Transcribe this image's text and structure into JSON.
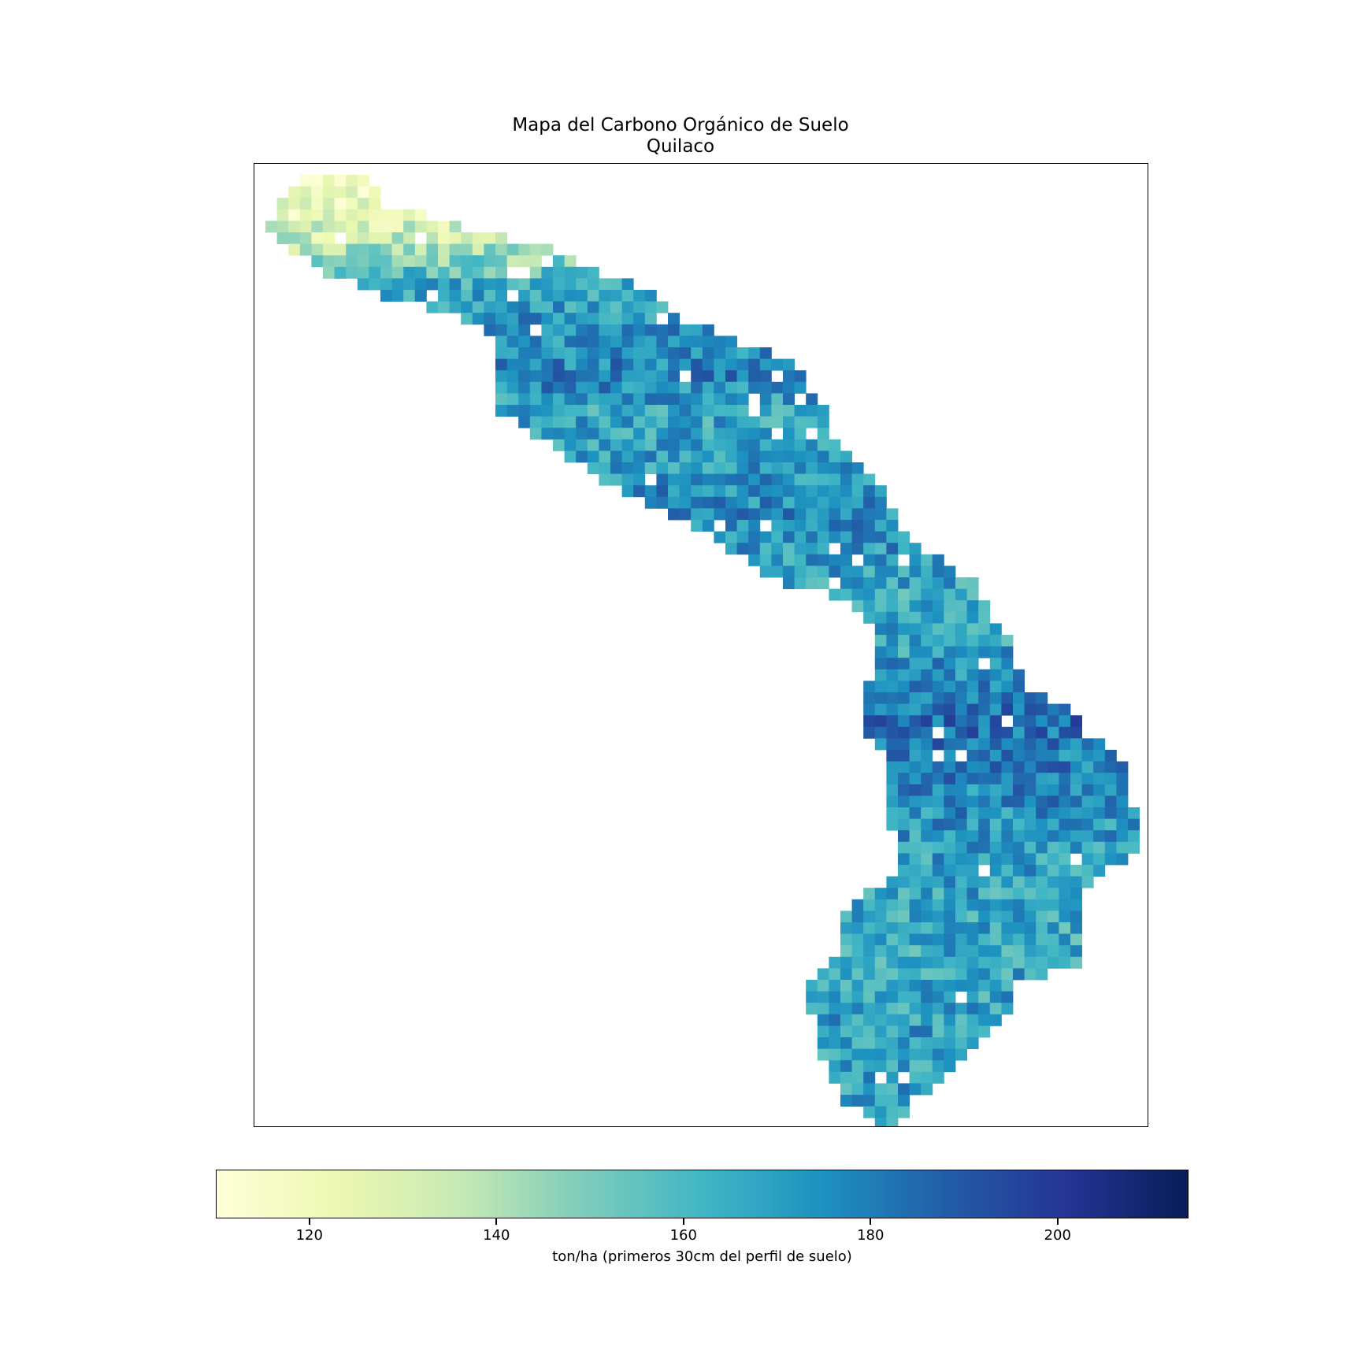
{
  "chart_data": {
    "type": "heatmap",
    "title": "Mapa del Carbono Orgánico de Suelo",
    "subtitle": "Quilaco",
    "colorbar": {
      "label": "ton/ha (primeros 30cm del perfil de suelo)",
      "range": [
        110,
        214
      ],
      "ticks": [
        120,
        140,
        160,
        180,
        200
      ],
      "colormap": [
        "#ffffd9",
        "#edf8b1",
        "#c7e9b4",
        "#7fcdbb",
        "#41b6c4",
        "#1d91c0",
        "#225ea8",
        "#253494",
        "#081d58"
      ]
    },
    "grid": {
      "rows": 83,
      "cols": 77,
      "value_range": [
        112,
        212
      ],
      "region_profile": [
        [
          0,
          3,
          8
        ],
        [
          2,
          1,
          9
        ],
        [
          4,
          0,
          16
        ],
        [
          6,
          2,
          24
        ],
        [
          8,
          5,
          28
        ],
        [
          10,
          10,
          33
        ],
        [
          12,
          17,
          35
        ],
        [
          14,
          20,
          40
        ],
        [
          16,
          20,
          45
        ],
        [
          18,
          20,
          46
        ],
        [
          20,
          20,
          48
        ],
        [
          22,
          23,
          48
        ],
        [
          24,
          26,
          50
        ],
        [
          26,
          29,
          52
        ],
        [
          28,
          33,
          53
        ],
        [
          30,
          37,
          54
        ],
        [
          32,
          40,
          56
        ],
        [
          34,
          43,
          59
        ],
        [
          35,
          45,
          61
        ],
        [
          36,
          49,
          61
        ],
        [
          38,
          52,
          62
        ],
        [
          40,
          53,
          64
        ],
        [
          42,
          53,
          64
        ],
        [
          44,
          52,
          65
        ],
        [
          46,
          52,
          69
        ],
        [
          48,
          52,
          70
        ],
        [
          50,
          54,
          73
        ],
        [
          52,
          54,
          74
        ],
        [
          54,
          54,
          74
        ],
        [
          56,
          54,
          75
        ],
        [
          58,
          55,
          75
        ],
        [
          60,
          55,
          72
        ],
        [
          62,
          52,
          70
        ],
        [
          64,
          50,
          70
        ],
        [
          66,
          50,
          70
        ],
        [
          68,
          49,
          70
        ],
        [
          70,
          47,
          64
        ],
        [
          72,
          47,
          64
        ],
        [
          74,
          48,
          62
        ],
        [
          76,
          48,
          60
        ],
        [
          78,
          49,
          58
        ],
        [
          80,
          50,
          55
        ],
        [
          82,
          53,
          54
        ]
      ],
      "value_trend": [
        [
          0,
          118
        ],
        [
          3,
          124
        ],
        [
          6,
          140
        ],
        [
          9,
          165
        ],
        [
          12,
          172
        ],
        [
          15,
          176
        ],
        [
          17,
          178
        ],
        [
          20,
          168
        ],
        [
          24,
          170
        ],
        [
          28,
          176
        ],
        [
          32,
          172
        ],
        [
          36,
          166
        ],
        [
          40,
          168
        ],
        [
          44,
          176
        ],
        [
          47,
          184
        ],
        [
          50,
          180
        ],
        [
          54,
          176
        ],
        [
          58,
          170
        ],
        [
          62,
          168
        ],
        [
          66,
          166
        ],
        [
          70,
          168
        ],
        [
          74,
          170
        ],
        [
          78,
          168
        ],
        [
          82,
          170
        ]
      ]
    }
  }
}
